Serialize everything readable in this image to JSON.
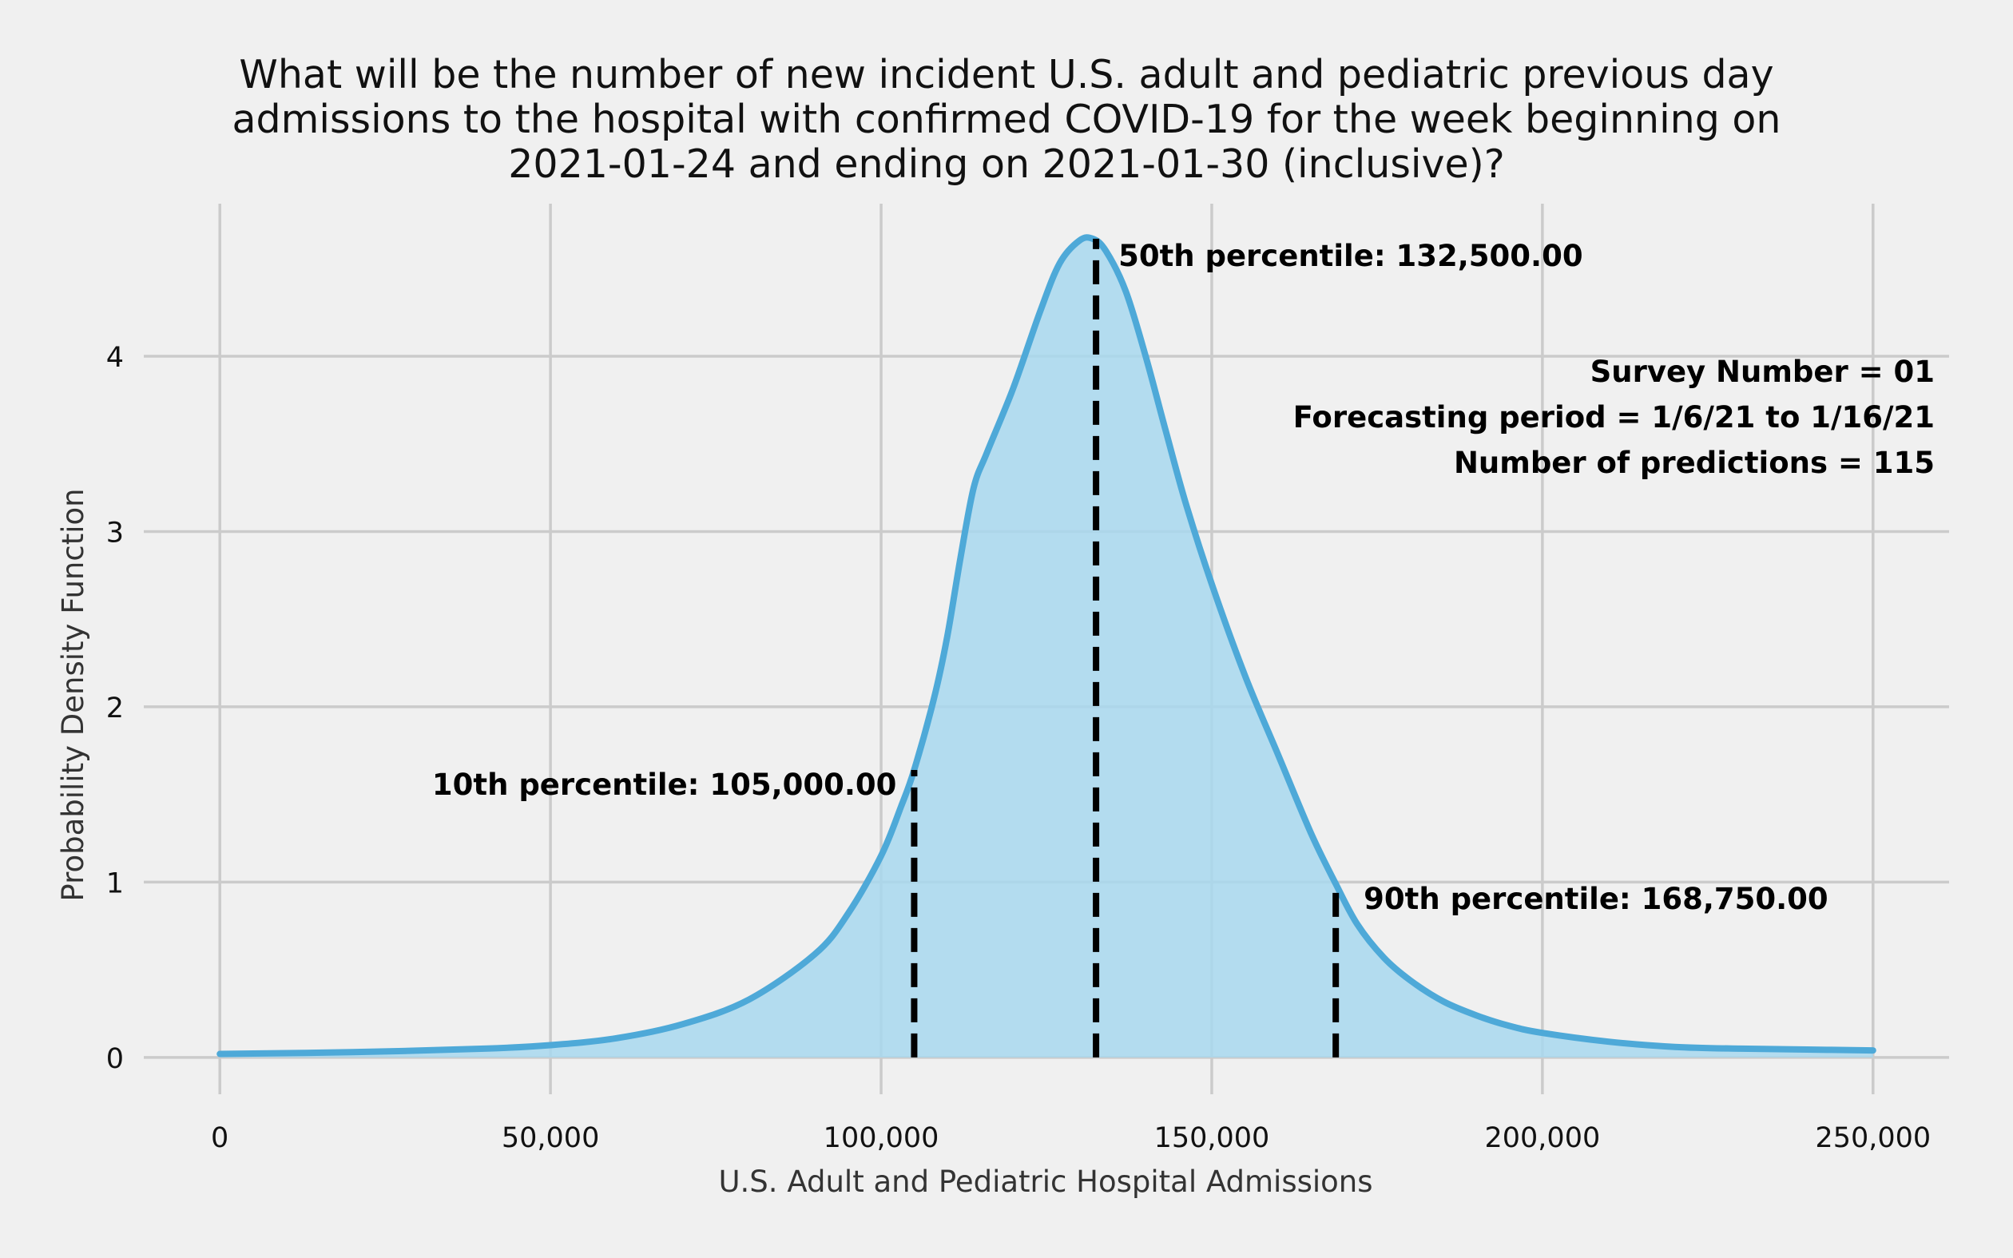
{
  "chart_data": {
    "type": "area",
    "title_lines": [
      "What will be the number of new incident U.S. adult and pediatric previous day",
      "admissions to the hospital with confirmed COVID-19 for the week beginning on",
      "2021-01-24 and ending on 2021-01-30 (inclusive)?"
    ],
    "xlabel": "U.S. Adult and Pediatric Hospital Admissions",
    "ylabel": "Probability Density Function",
    "xlim": [
      -11500,
      261500
    ],
    "ylim": [
      -0.21,
      4.87
    ],
    "xticks": [
      0,
      50000,
      100000,
      150000,
      200000,
      250000
    ],
    "xtick_labels": [
      "0",
      "50,000",
      "100,000",
      "150,000",
      "200,000",
      "250,000"
    ],
    "yticks": [
      0,
      1,
      2,
      3,
      4
    ],
    "ytick_labels": [
      "0",
      "1",
      "2",
      "3",
      "4"
    ],
    "grid": true,
    "legend": "none",
    "colors": {
      "curve": "#4ea9d8",
      "fill": "#a8d8ee",
      "background": "#f0f0f0",
      "percentile_line": "#000000"
    },
    "series": [
      {
        "x": [
          0,
          20000,
          40000,
          50000,
          60000,
          70000,
          80000,
          90000,
          95000,
          100000,
          103000,
          105000,
          108000,
          110000,
          112000,
          114000,
          116000,
          120000,
          124000,
          127000,
          130000,
          132000,
          134000,
          137000,
          140000,
          143000,
          146000,
          150000,
          155000,
          160000,
          165000,
          168750,
          172000,
          176000,
          180000,
          185000,
          190000,
          195000,
          200000,
          210000,
          220000,
          230000,
          240000,
          250000
        ],
        "y": [
          0.02,
          0.03,
          0.05,
          0.07,
          0.11,
          0.19,
          0.33,
          0.59,
          0.82,
          1.15,
          1.43,
          1.64,
          2.05,
          2.4,
          2.85,
          3.25,
          3.45,
          3.82,
          4.25,
          4.53,
          4.66,
          4.67,
          4.6,
          4.37,
          4.0,
          3.58,
          3.17,
          2.7,
          2.18,
          1.73,
          1.28,
          0.99,
          0.76,
          0.57,
          0.44,
          0.32,
          0.24,
          0.18,
          0.14,
          0.09,
          0.06,
          0.05,
          0.045,
          0.04
        ]
      }
    ],
    "percentiles": [
      {
        "value": 105000,
        "density": 1.64,
        "label": "10th percentile: 105,000.00"
      },
      {
        "value": 132500,
        "density": 4.67,
        "label": "50th percentile: 132,500.00"
      },
      {
        "value": 168750,
        "density": 0.99,
        "label": "90th percentile: 168,750.00"
      }
    ],
    "info_lines": [
      "Survey Number = 01",
      "Forecasting period = 1/6/21 to 1/16/21",
      "Number of predictions = 115"
    ]
  }
}
